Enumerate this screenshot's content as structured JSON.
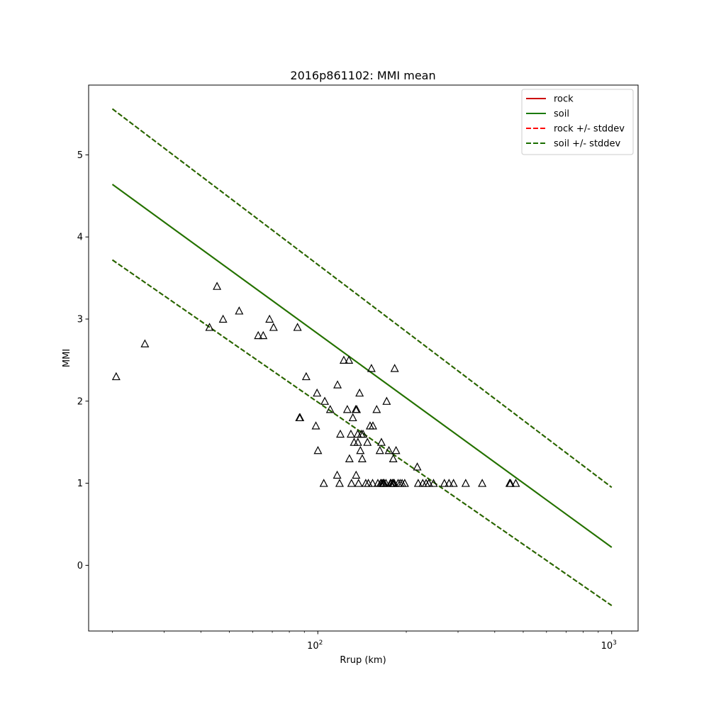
{
  "chart_data": {
    "type": "scatter",
    "title": "2016p861102: MMI mean",
    "xlabel": "Rrup (km)",
    "ylabel": "MMI",
    "xscale": "log",
    "xlim": [
      16.6,
      1230
    ],
    "ylim": [
      -0.8,
      5.85
    ],
    "grid": false,
    "legend_position": "top-right",
    "x_ticks": [
      {
        "value": 100,
        "base": "10",
        "exp": "2"
      },
      {
        "value": 1000,
        "base": "10",
        "exp": "3"
      }
    ],
    "y_ticks": [
      0,
      1,
      2,
      3,
      4,
      5
    ],
    "series": [
      {
        "name": "rock",
        "kind": "line",
        "style": "solid",
        "color": "#cc0000",
        "x": [
          20,
          1000
        ],
        "y": [
          4.64,
          0.22
        ]
      },
      {
        "name": "soil",
        "kind": "line",
        "style": "solid",
        "color": "#1a7a00",
        "x": [
          20,
          1000
        ],
        "y": [
          4.64,
          0.22
        ]
      },
      {
        "name": "rock +/- stddev",
        "kind": "line",
        "style": "dashed",
        "color": "#ff0000",
        "lines": [
          {
            "x": [
              20,
              1000
            ],
            "y": [
              5.56,
              0.95
            ]
          },
          {
            "x": [
              20,
              1000
            ],
            "y": [
              3.72,
              -0.49
            ]
          }
        ]
      },
      {
        "name": "soil +/- stddev",
        "kind": "line",
        "style": "dashed",
        "color": "#1a6e00",
        "lines": [
          {
            "x": [
              20,
              1000
            ],
            "y": [
              5.56,
              0.95
            ]
          },
          {
            "x": [
              20,
              1000
            ],
            "y": [
              3.72,
              -0.49
            ]
          }
        ]
      }
    ],
    "observations": {
      "marker": "triangle",
      "color": "#000000",
      "x": [
        20.6,
        25.8,
        42.8,
        45.4,
        47.6,
        54.0,
        62.7,
        65.2,
        68.5,
        70.7,
        85.3,
        86.6,
        87.0,
        91.3,
        98.5,
        99.4,
        100.1,
        104.8,
        105.6,
        110.2,
        116.4,
        116.7,
        118.6,
        119.3,
        122.6,
        126.0,
        127.6,
        128.1,
        129.6,
        130.2,
        131.6,
        132.9,
        134.6,
        135.0,
        135.6,
        136.7,
        136.9,
        137.6,
        138.7,
        139.6,
        140.6,
        141.6,
        142.5,
        145.6,
        147.5,
        148.6,
        150.6,
        152.2,
        153.6,
        154.0,
        158.6,
        160.1,
        162.6,
        163.6,
        164.6,
        165.1,
        166.6,
        167.6,
        168.2,
        170.6,
        171.5,
        174.6,
        176.6,
        177.6,
        179.6,
        180.3,
        180.6,
        181.6,
        182.0,
        182.6,
        184.6,
        187.6,
        190.6,
        193.5,
        197.6,
        218.0,
        219.6,
        227.6,
        233.6,
        238.6,
        247.6,
        269.6,
        279.6,
        289.6,
        318.6,
        362.6,
        449.6,
        452.6,
        471.6
      ],
      "y": [
        2.3,
        2.7,
        2.9,
        3.4,
        3.0,
        3.1,
        2.8,
        2.8,
        3.0,
        2.9,
        2.9,
        1.8,
        1.8,
        2.3,
        1.7,
        2.1,
        1.4,
        1.0,
        2.0,
        1.9,
        1.1,
        2.2,
        1.0,
        1.6,
        2.5,
        1.9,
        2.5,
        1.3,
        1.6,
        1.0,
        1.8,
        1.5,
        1.9,
        1.1,
        1.9,
        1.6,
        1.5,
        1.0,
        2.1,
        1.4,
        1.6,
        1.3,
        1.6,
        1.0,
        1.5,
        1.0,
        1.7,
        2.4,
        1.0,
        1.7,
        1.9,
        1.0,
        1.4,
        1.0,
        1.5,
        1.0,
        1.0,
        1.0,
        1.0,
        1.0,
        2.0,
        1.4,
        1.0,
        1.0,
        1.0,
        1.0,
        1.3,
        1.0,
        1.0,
        2.4,
        1.4,
        1.0,
        1.0,
        1.0,
        1.0,
        1.2,
        1.0,
        1.0,
        1.0,
        1.0,
        1.0,
        1.0,
        1.0,
        1.0,
        1.0,
        1.0,
        1.0,
        1.0,
        1.0
      ]
    }
  }
}
